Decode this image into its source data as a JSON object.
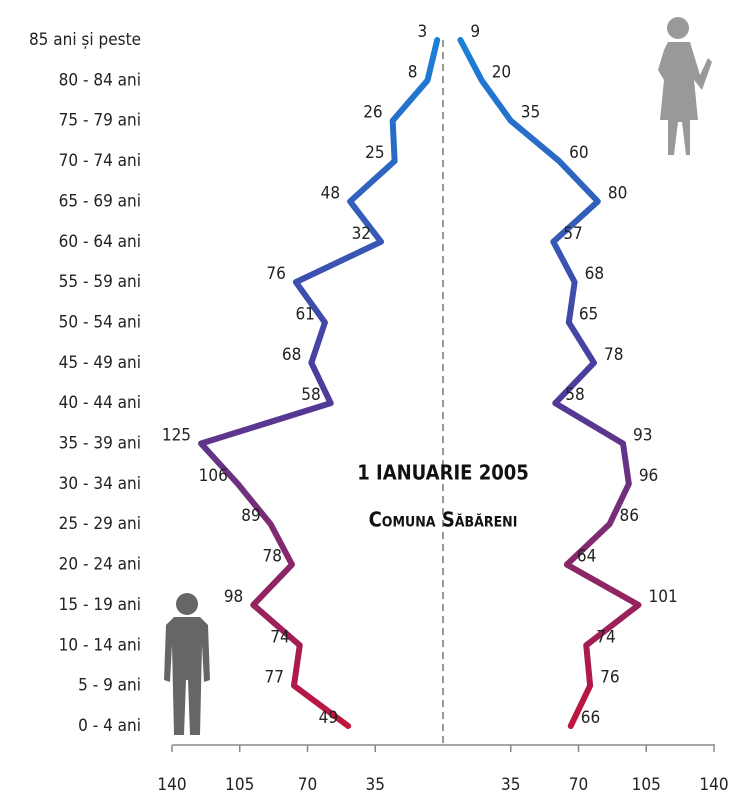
{
  "chart_data": {
    "type": "line",
    "title": "1 IANUARIE 2005",
    "subtitle": "Comuna Săbăreni",
    "categories": [
      "0 - 4 ani",
      "5 - 9 ani",
      "10 - 14 ani",
      "15 - 19 ani",
      "20 - 24 ani",
      "25 - 29 ani",
      "30 - 34 ani",
      "35 - 39 ani",
      "40 - 44 ani",
      "45 - 49 ani",
      "50 - 54 ani",
      "55 - 59 ani",
      "60 - 64 ani",
      "65 - 69 ani",
      "70 - 74 ani",
      "75 - 79 ani",
      "80 - 84 ani",
      "85 ani și peste"
    ],
    "series": [
      {
        "values": [
          49,
          77,
          74,
          98,
          78,
          89,
          106,
          125,
          58,
          68,
          61,
          76,
          32,
          48,
          25,
          26,
          8,
          3
        ]
      },
      {
        "values": [
          66,
          76,
          74,
          101,
          64,
          86,
          96,
          93,
          58,
          78,
          65,
          68,
          57,
          80,
          60,
          35,
          20,
          9
        ]
      }
    ],
    "colors": [
      "#c0143c",
      "#4b3c9c",
      "#1a80d8"
    ],
    "xlim": [
      0,
      140
    ],
    "xticks": [
      35,
      70,
      105,
      140
    ]
  }
}
